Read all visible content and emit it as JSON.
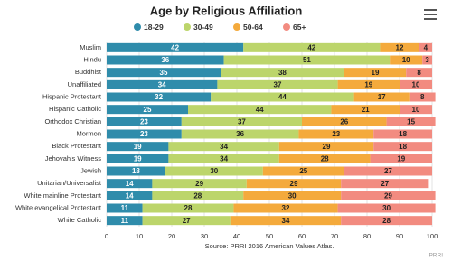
{
  "chart_data": {
    "type": "stacked-bar-horizontal",
    "title": "Age by Religious Affiliation",
    "categories": [
      "Muslim",
      "Hindu",
      "Buddhist",
      "Unaffiliated",
      "Hispanic Protestant",
      "Hispanic Catholic",
      "Orthodox Christian",
      "Mormon",
      "Black Protestant",
      "Jehovah's Witness",
      "Jewish",
      "Unitarian/Universalist",
      "White mainline Protestant",
      "White evangelical Protestant",
      "White Catholic"
    ],
    "series": [
      {
        "name": "18-29",
        "color": "#2f8cab",
        "values": [
          42,
          36,
          35,
          34,
          32,
          25,
          23,
          23,
          19,
          19,
          18,
          14,
          14,
          11,
          11
        ]
      },
      {
        "name": "30-49",
        "color": "#bcd56b",
        "values": [
          42,
          51,
          38,
          37,
          44,
          44,
          37,
          36,
          34,
          34,
          30,
          29,
          28,
          28,
          27
        ]
      },
      {
        "name": "50-64",
        "color": "#f4aa3c",
        "values": [
          12,
          10,
          19,
          19,
          17,
          21,
          26,
          23,
          29,
          28,
          25,
          29,
          30,
          32,
          34
        ]
      },
      {
        "name": "65+",
        "color": "#f28b80",
        "values": [
          4,
          3,
          8,
          10,
          8,
          10,
          15,
          18,
          18,
          19,
          27,
          27,
          29,
          30,
          28
        ]
      }
    ],
    "xlim": [
      0,
      100
    ],
    "xticks": [
      0,
      10,
      20,
      30,
      40,
      50,
      60,
      70,
      80,
      90,
      100
    ],
    "grid": true,
    "source": "Source: PRRI 2016 American Values Atlas.",
    "credit": "PRRI"
  }
}
